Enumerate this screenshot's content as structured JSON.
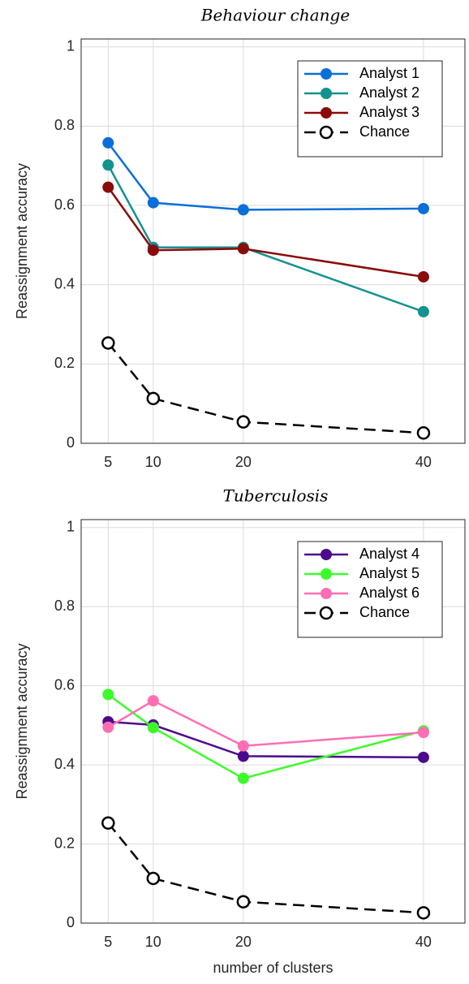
{
  "chart_data": [
    {
      "type": "line",
      "title": "Behaviour change",
      "ylabel": "Reassignment accuracy",
      "x": [
        5,
        10,
        20,
        40
      ],
      "xlim": [
        2,
        44.6
      ],
      "xticks": [
        5,
        10,
        20,
        40
      ],
      "ylim": [
        0,
        1.02
      ],
      "yticks": [
        0,
        0.2,
        0.4,
        0.6,
        0.8,
        1
      ],
      "grid": true,
      "legend": "upper right",
      "series": [
        {
          "name": "Analyst 1",
          "color": "#0a6fd6",
          "values": [
            0.758,
            0.607,
            0.589,
            0.592
          ]
        },
        {
          "name": "Analyst 2",
          "color": "#13928f",
          "values": [
            0.702,
            0.494,
            0.494,
            0.332
          ]
        },
        {
          "name": "Analyst 3",
          "color": "#8b0a0a",
          "values": [
            0.646,
            0.487,
            0.491,
            0.42
          ]
        },
        {
          "name": "Chance",
          "color": "#000000",
          "linestyle": "dashed",
          "marker": "hollow",
          "values": [
            0.253,
            0.113,
            0.054,
            0.026
          ]
        }
      ]
    },
    {
      "type": "line",
      "title": "Tuberculosis",
      "ylabel": "Reassignment accuracy",
      "xlabel": "number of clusters",
      "x": [
        5,
        10,
        20,
        40
      ],
      "xlim": [
        2,
        44.6
      ],
      "xticks": [
        5,
        10,
        20,
        40
      ],
      "ylim": [
        0,
        1.02
      ],
      "yticks": [
        0,
        0.2,
        0.4,
        0.6,
        0.8,
        1
      ],
      "grid": true,
      "legend": "upper right",
      "series": [
        {
          "name": "Analyst 4",
          "color": "#4b0a8c",
          "values": [
            0.509,
            0.501,
            0.422,
            0.419
          ]
        },
        {
          "name": "Analyst 5",
          "color": "#3dfa2b",
          "values": [
            0.578,
            0.494,
            0.366,
            0.486
          ]
        },
        {
          "name": "Analyst 6",
          "color": "#ff6eb4",
          "values": [
            0.495,
            0.562,
            0.448,
            0.482
          ]
        },
        {
          "name": "Chance",
          "color": "#000000",
          "linestyle": "dashed",
          "marker": "hollow",
          "values": [
            0.253,
            0.113,
            0.054,
            0.026
          ]
        }
      ]
    }
  ]
}
